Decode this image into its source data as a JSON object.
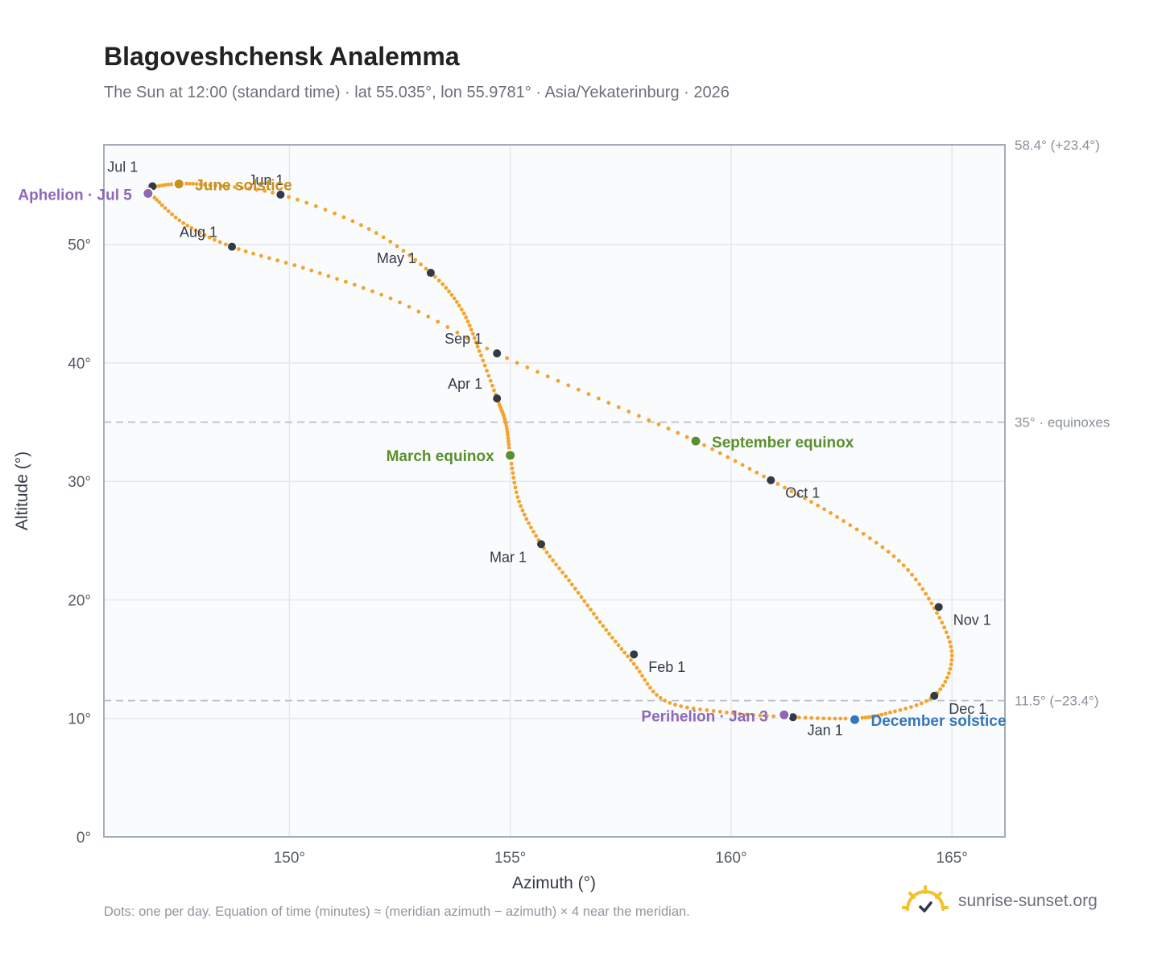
{
  "title": "Blagoveshchensk Analemma",
  "subtitle": "The Sun at 12:00 (standard time) · lat 55.035°, lon 55.9781° · Asia/Yekaterinburg · 2026",
  "footnote": "Dots: one per day. Equation of time (minutes) ≈ (meridian azimuth − azimuth) × 4 near the meridian.",
  "brand": {
    "name": "sunrise-sunset.org",
    "icon": "sun-logo-icon"
  },
  "colors": {
    "curve": "#f2a42c",
    "month_marker": "#333a45",
    "solstice_june": "#c8901d",
    "solstice_december": "#3577b8",
    "equinox": "#5a8f2e",
    "apsis": "#8e68b8",
    "reference_line": "#b9c0ca",
    "plot_background": "#f9fbfd",
    "grid": "#e5e8ee",
    "frame": "#a4adb9"
  },
  "chart_data": {
    "type": "scatter",
    "title": "Blagoveshchensk Analemma",
    "subtitle": "The Sun at 12:00 (standard time) · lat 55.035°, lon 55.9781° · Asia/Yekaterinburg · 2026",
    "xlabel": "Azimuth (°)",
    "ylabel": "Altitude (°)",
    "xlim": [
      145.8,
      166.2
    ],
    "ylim": [
      0,
      58.4
    ],
    "xticks": [
      {
        "value": 150,
        "label": "150°"
      },
      {
        "value": 155,
        "label": "155°"
      },
      {
        "value": 160,
        "label": "160°"
      },
      {
        "value": 165,
        "label": "165°"
      }
    ],
    "yticks": [
      {
        "value": 0,
        "label": "0°"
      },
      {
        "value": 10,
        "label": "10°"
      },
      {
        "value": 20,
        "label": "20°"
      },
      {
        "value": 30,
        "label": "30°"
      },
      {
        "value": 40,
        "label": "40°"
      },
      {
        "value": 50,
        "label": "50°"
      }
    ],
    "grid": true,
    "series": [
      {
        "points": [
          [
            161.4,
            10.1
          ],
          [
            159.9,
            10.5
          ],
          [
            158.5,
            11.5
          ],
          [
            157.8,
            14.6
          ],
          [
            157.1,
            17.8
          ],
          [
            156.4,
            21.3
          ],
          [
            155.7,
            24.7
          ],
          [
            155.2,
            28.3
          ],
          [
            155.0,
            32.2
          ],
          [
            154.9,
            34.9
          ],
          [
            154.7,
            37.0
          ],
          [
            154.3,
            41.0
          ],
          [
            153.9,
            44.5
          ],
          [
            153.2,
            47.6
          ],
          [
            151.8,
            51.3
          ],
          [
            149.8,
            54.2
          ],
          [
            148.2,
            55.0
          ],
          [
            147.4,
            55.1
          ],
          [
            146.8,
            54.7
          ],
          [
            146.8,
            54.3
          ],
          [
            146.9,
            54.1
          ],
          [
            147.6,
            51.8
          ],
          [
            148.7,
            49.8
          ],
          [
            150.5,
            47.8
          ],
          [
            152.5,
            45.1
          ],
          [
            154.7,
            40.8
          ],
          [
            157.0,
            37.0
          ],
          [
            159.2,
            33.4
          ],
          [
            160.9,
            30.1
          ],
          [
            162.4,
            27.0
          ],
          [
            163.8,
            23.3
          ],
          [
            164.6,
            19.3
          ],
          [
            165.0,
            15.3
          ],
          [
            164.6,
            11.9
          ],
          [
            163.5,
            10.4
          ],
          [
            162.7,
            10.0
          ],
          [
            161.4,
            10.1
          ]
        ]
      }
    ],
    "month_markers": [
      {
        "label": "Jan 1",
        "azimuth": 161.4,
        "altitude": 10.1
      },
      {
        "label": "Feb 1",
        "azimuth": 157.8,
        "altitude": 15.4
      },
      {
        "label": "Mar 1",
        "azimuth": 155.7,
        "altitude": 24.7
      },
      {
        "label": "Apr 1",
        "azimuth": 154.7,
        "altitude": 37.0
      },
      {
        "label": "May 1",
        "azimuth": 153.2,
        "altitude": 47.6
      },
      {
        "label": "Jun 1",
        "azimuth": 149.8,
        "altitude": 54.2
      },
      {
        "label": "Jul 1",
        "azimuth": 146.9,
        "altitude": 54.9
      },
      {
        "label": "Aug 1",
        "azimuth": 148.7,
        "altitude": 49.8
      },
      {
        "label": "Sep 1",
        "azimuth": 154.7,
        "altitude": 40.8
      },
      {
        "label": "Oct 1",
        "azimuth": 160.9,
        "altitude": 30.1
      },
      {
        "label": "Nov 1",
        "azimuth": 164.7,
        "altitude": 19.4
      },
      {
        "label": "Dec 1",
        "azimuth": 164.6,
        "altitude": 11.9
      }
    ],
    "events": [
      {
        "label": "June solstice",
        "azimuth": 147.5,
        "altitude": 55.1,
        "color": "#c8901d"
      },
      {
        "label": "March equinox",
        "azimuth": 155.0,
        "altitude": 32.2,
        "color": "#5a8f2e"
      },
      {
        "label": "September equinox",
        "azimuth": 159.2,
        "altitude": 33.4,
        "color": "#5a8f2e"
      },
      {
        "label": "December solstice",
        "azimuth": 162.8,
        "altitude": 9.9,
        "color": "#3577b8"
      },
      {
        "label": "Aphelion · Jul 5",
        "azimuth": 146.8,
        "altitude": 54.3,
        "color": "#8e68b8"
      },
      {
        "label": "Perihelion · Jan 3",
        "azimuth": 161.2,
        "altitude": 10.3,
        "color": "#8e68b8"
      }
    ],
    "reference_lines": [
      {
        "altitude": 58.4,
        "label": "58.4° (+23.4°)"
      },
      {
        "altitude": 35.0,
        "label": "35° · equinoxes"
      },
      {
        "altitude": 11.5,
        "label": "11.5° (−23.4°)"
      }
    ]
  }
}
